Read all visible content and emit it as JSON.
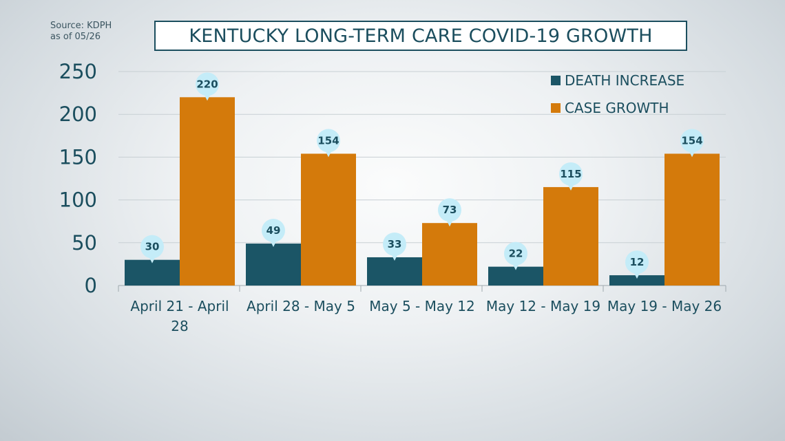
{
  "source": {
    "line1": "Source: KDPH",
    "line2": "as of 05/26"
  },
  "chart_data": {
    "type": "bar",
    "title": "KENTUCKY LONG-TERM CARE COVID-19 GROWTH",
    "categories": [
      [
        "April 21 - April",
        "28"
      ],
      [
        "April 28 - May 5"
      ],
      [
        "May 5 - May 12"
      ],
      [
        "May 12 - May 19"
      ],
      [
        "May 19 - May 26"
      ]
    ],
    "series": [
      {
        "name": "DEATH INCREASE",
        "color": "#1b5566",
        "values": [
          30,
          49,
          33,
          22,
          12
        ]
      },
      {
        "name": "CASE GROWTH",
        "color": "#d47a0b",
        "values": [
          220,
          154,
          73,
          115,
          154
        ]
      }
    ],
    "yticks": [
      "0",
      "50",
      "100",
      "150",
      "200",
      "250"
    ],
    "ylim": [
      0,
      250
    ],
    "xlabel": "",
    "ylabel": "",
    "grid": true,
    "legend": "top-right",
    "label_bubble_color": "#c4ecf8"
  }
}
